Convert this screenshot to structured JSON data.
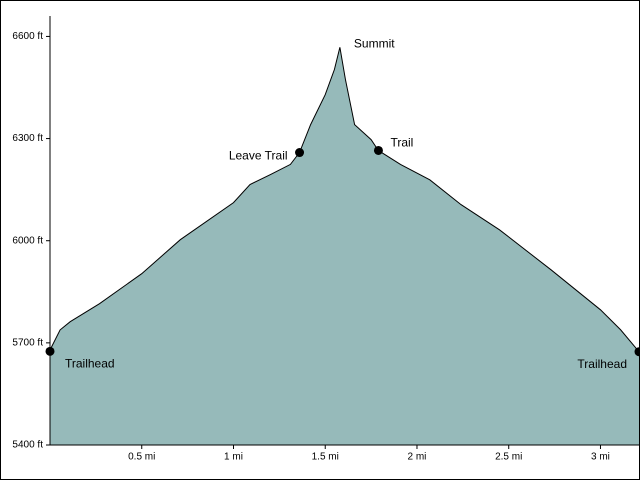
{
  "chart_data": {
    "type": "area",
    "x": [
      0,
      0.055,
      0.11,
      0.27,
      0.5,
      0.71,
      1.0,
      1.09,
      1.2,
      1.31,
      1.36,
      1.42,
      1.5,
      1.55,
      1.58,
      1.61,
      1.66,
      1.75,
      1.79,
      1.91,
      2.07,
      2.24,
      2.45,
      2.73,
      3.0,
      3.11,
      3.21
    ],
    "values": [
      5679,
      5738,
      5762,
      5815,
      5903,
      6003,
      6112,
      6165,
      6194,
      6224,
      6259,
      6341,
      6429,
      6503,
      6568,
      6474,
      6341,
      6297,
      6265,
      6224,
      6179,
      6106,
      6032,
      5915,
      5797,
      5738,
      5674
    ],
    "color": "#96baba",
    "line_color": "#000000",
    "xlim": [
      0,
      3.21
    ],
    "ylim": [
      5400,
      6660
    ],
    "xticks": [
      {
        "value": 0.5,
        "label": "0.5 mi"
      },
      {
        "value": 1,
        "label": "1 mi"
      },
      {
        "value": 1.5,
        "label": "1.5 mi"
      },
      {
        "value": 2,
        "label": "2 mi"
      },
      {
        "value": 2.5,
        "label": "2.5 mi"
      },
      {
        "value": 3,
        "label": "3 mi"
      }
    ],
    "yticks": [
      {
        "value": 5400,
        "label": "5400 ft"
      },
      {
        "value": 5700,
        "label": "5700 ft"
      },
      {
        "value": 6000,
        "label": "6000 ft"
      },
      {
        "value": 6300,
        "label": "6300 ft"
      },
      {
        "value": 6600,
        "label": "6600 ft"
      }
    ],
    "waypoints": [
      {
        "label": "Trailhead",
        "x": 0,
        "y": 5675,
        "marker": true
      },
      {
        "label": "Leave Trail",
        "x": 1.36,
        "y": 6259,
        "marker": true
      },
      {
        "label": "Summit",
        "x": 1.58,
        "y": 6568,
        "marker": false
      },
      {
        "label": "Trail",
        "x": 1.79,
        "y": 6265,
        "marker": true
      },
      {
        "label": "Trailhead",
        "x": 3.21,
        "y": 5674,
        "marker": true
      }
    ]
  }
}
